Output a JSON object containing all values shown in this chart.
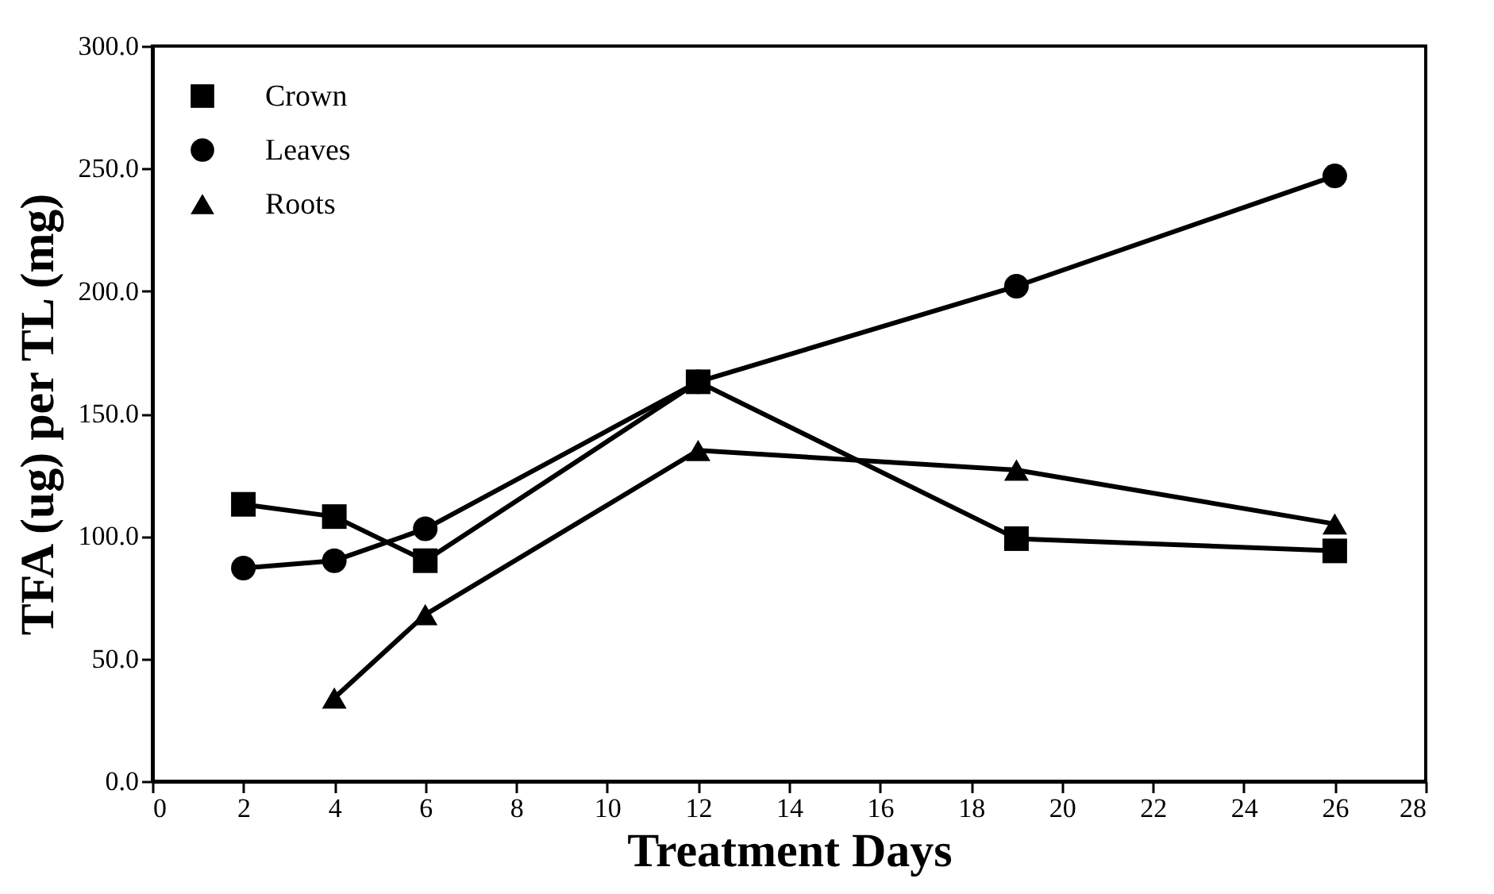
{
  "chart_data": {
    "type": "line",
    "xlabel": "Treatment Days",
    "ylabel": "TFA (ug) per TL (mg)",
    "xlim": [
      0,
      28
    ],
    "xticks": [
      0,
      2,
      4,
      6,
      8,
      10,
      12,
      14,
      16,
      18,
      20,
      22,
      24,
      26,
      28
    ],
    "ylim": [
      0,
      300
    ],
    "yticks": [
      {
        "value": 0,
        "label": "0.0"
      },
      {
        "value": 50,
        "label": "50.0"
      },
      {
        "value": 100,
        "label": "100.0"
      },
      {
        "value": 150,
        "label": "150.0"
      },
      {
        "value": 200,
        "label": "200.0"
      },
      {
        "value": 250,
        "label": "250.0"
      },
      {
        "value": 300,
        "label": "300.0"
      }
    ],
    "legend": "top left",
    "grid": false,
    "series": [
      {
        "name": "Crown",
        "color": "#000000",
        "marker": "square",
        "x": [
          2,
          4,
          6,
          12,
          19,
          26
        ],
        "values": [
          113,
          108,
          90,
          163,
          99,
          94
        ]
      },
      {
        "name": "Leaves",
        "color": "#000000",
        "marker": "circle",
        "x": [
          2,
          4,
          6,
          12,
          19,
          26
        ],
        "values": [
          87,
          90,
          103,
          163,
          202,
          247
        ]
      },
      {
        "name": "Roots",
        "color": "#000000",
        "marker": "triangle",
        "x": [
          4,
          6,
          12,
          19,
          26
        ],
        "values": [
          34,
          68,
          135,
          127,
          105
        ]
      }
    ]
  }
}
